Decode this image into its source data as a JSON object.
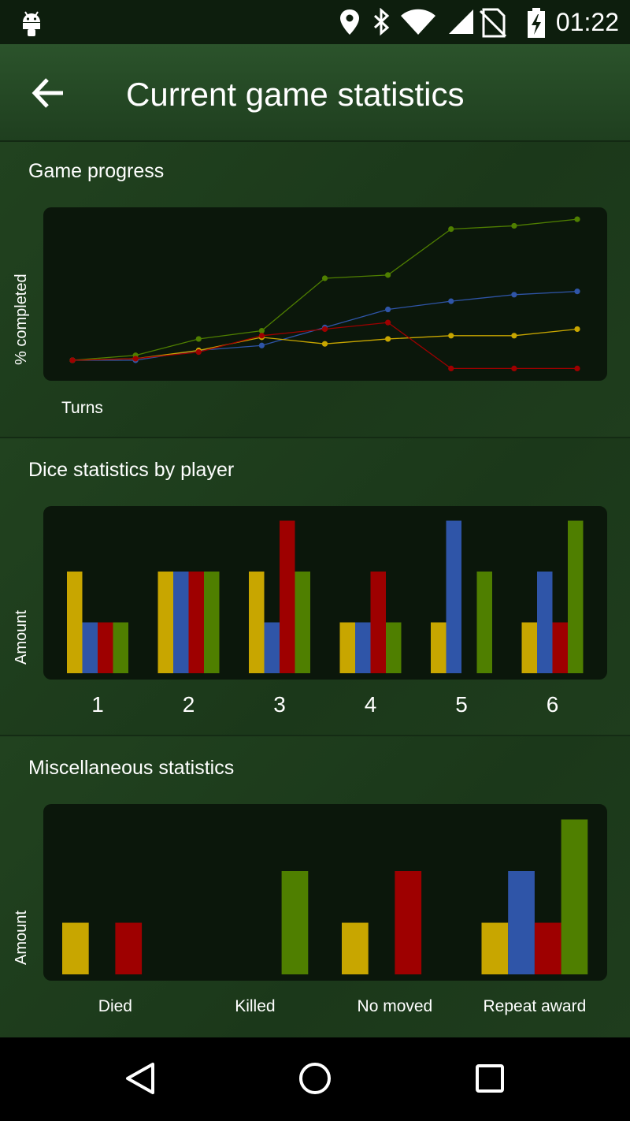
{
  "status_bar": {
    "time": "01:22",
    "icons": [
      "android-icon",
      "location-icon",
      "bluetooth-icon",
      "wifi-icon",
      "signal-icon",
      "no-sim-icon",
      "battery-charging-icon"
    ]
  },
  "app_bar": {
    "title": "Current game statistics",
    "back_icon": "arrow-left-icon"
  },
  "colors": {
    "yellow": "#c8a600",
    "blue": "#2f55a8",
    "red": "#9e0000",
    "green": "#4f7f00"
  },
  "sections": {
    "progress": {
      "title": "Game progress",
      "ylabel": "% completed",
      "xlabel": "Turns"
    },
    "dice": {
      "title": "Dice statistics by player",
      "ylabel": "Amount"
    },
    "misc": {
      "title": "Miscellaneous statistics",
      "ylabel": "Amount"
    }
  },
  "chart_data": [
    {
      "type": "line",
      "ylabel": "% completed",
      "xlabel": "Turns",
      "x": [
        1,
        2,
        3,
        4,
        5,
        6,
        7,
        8,
        9
      ],
      "series": [
        {
          "color": "#4f7f00",
          "values": [
            0,
            3,
            13,
            18,
            50,
            52,
            80,
            82,
            86
          ]
        },
        {
          "color": "#2f55a8",
          "values": [
            0,
            0,
            6,
            9,
            20,
            31,
            36,
            40,
            42
          ]
        },
        {
          "color": "#c8a600",
          "values": [
            0,
            1,
            6,
            14,
            10,
            13,
            15,
            15,
            19
          ]
        },
        {
          "color": "#9e0000",
          "values": [
            0,
            1,
            5,
            15,
            19,
            23,
            -5,
            -5,
            -5
          ]
        }
      ]
    },
    {
      "type": "bar",
      "ylabel": "Amount",
      "categories": [
        "1",
        "2",
        "3",
        "4",
        "5",
        "6"
      ],
      "series": [
        {
          "color": "#c8a600",
          "values": [
            2,
            2,
            2,
            1,
            1,
            1
          ]
        },
        {
          "color": "#2f55a8",
          "values": [
            1,
            2,
            1,
            1,
            3,
            2
          ]
        },
        {
          "color": "#9e0000",
          "values": [
            1,
            2,
            3,
            2,
            0,
            1
          ]
        },
        {
          "color": "#4f7f00",
          "values": [
            1,
            2,
            2,
            1,
            2,
            3
          ]
        }
      ],
      "ylim": [
        0,
        3
      ]
    },
    {
      "type": "bar",
      "ylabel": "Amount",
      "categories": [
        "Died",
        "Killed",
        "No moved",
        "Repeat award"
      ],
      "series": [
        {
          "color": "#c8a600",
          "values": [
            1,
            0,
            1,
            1
          ]
        },
        {
          "color": "#2f55a8",
          "values": [
            0,
            0,
            0,
            2
          ]
        },
        {
          "color": "#9e0000",
          "values": [
            1,
            0,
            2,
            1
          ]
        },
        {
          "color": "#4f7f00",
          "values": [
            0,
            2,
            0,
            3
          ]
        }
      ],
      "ylim": [
        0,
        3
      ]
    }
  ]
}
